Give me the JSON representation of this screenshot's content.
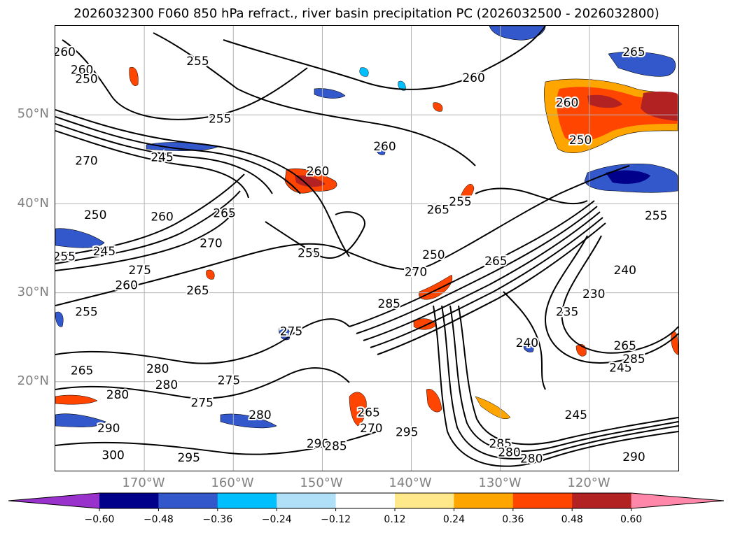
{
  "figure": {
    "title": "2026032300 F060 850 hPa refract., river basin precipitation PC (2026032500 - 2026032800)"
  },
  "axes": {
    "lat_labels": [
      "50°N",
      "40°N",
      "30°N",
      "20°N"
    ],
    "lon_labels": [
      "170°W",
      "160°W",
      "150°W",
      "140°W",
      "130°W",
      "120°W"
    ],
    "lat_range": [
      10,
      60
    ],
    "lon_range": [
      -180,
      -110
    ]
  },
  "contour_labels": [
    {
      "text": "260",
      "lon": -179,
      "lat": 57
    },
    {
      "text": "260",
      "lon": -177,
      "lat": 55
    },
    {
      "text": "250",
      "lon": -176.5,
      "lat": 54
    },
    {
      "text": "255",
      "lon": -164,
      "lat": 56
    },
    {
      "text": "255",
      "lon": -161.5,
      "lat": 49.5
    },
    {
      "text": "245",
      "lon": -168,
      "lat": 45.2
    },
    {
      "text": "270",
      "lon": -176.5,
      "lat": 44.8
    },
    {
      "text": "260",
      "lon": -150.5,
      "lat": 43.6
    },
    {
      "text": "260",
      "lon": -143,
      "lat": 46.4
    },
    {
      "text": "260",
      "lon": -133,
      "lat": 54.1
    },
    {
      "text": "260",
      "lon": -122.5,
      "lat": 51.3
    },
    {
      "text": "265",
      "lon": -115,
      "lat": 57
    },
    {
      "text": "265",
      "lon": -161,
      "lat": 38.9
    },
    {
      "text": "250",
      "lon": -175.5,
      "lat": 38.7
    },
    {
      "text": "260",
      "lon": -168,
      "lat": 38.5
    },
    {
      "text": "270",
      "lon": -162.5,
      "lat": 35.5
    },
    {
      "text": "255",
      "lon": -179,
      "lat": 34
    },
    {
      "text": "245",
      "lon": -174.5,
      "lat": 34.6
    },
    {
      "text": "275",
      "lon": -170.5,
      "lat": 32.5
    },
    {
      "text": "260",
      "lon": -172,
      "lat": 30.8
    },
    {
      "text": "265",
      "lon": -164,
      "lat": 30.2
    },
    {
      "text": "255",
      "lon": -151.5,
      "lat": 34.4
    },
    {
      "text": "265",
      "lon": -137,
      "lat": 39.3
    },
    {
      "text": "255",
      "lon": -134.5,
      "lat": 40.2
    },
    {
      "text": "250",
      "lon": -137.5,
      "lat": 34.2
    },
    {
      "text": "270",
      "lon": -139.5,
      "lat": 32.3
    },
    {
      "text": "285",
      "lon": -142.5,
      "lat": 28.7
    },
    {
      "text": "275",
      "lon": -153.5,
      "lat": 25.6
    },
    {
      "text": "255",
      "lon": -176.5,
      "lat": 27.8
    },
    {
      "text": "265",
      "lon": -177,
      "lat": 21.2
    },
    {
      "text": "280",
      "lon": -168.5,
      "lat": 21.4
    },
    {
      "text": "280",
      "lon": -167.5,
      "lat": 19.6
    },
    {
      "text": "280",
      "lon": -173,
      "lat": 18.5
    },
    {
      "text": "275",
      "lon": -160.5,
      "lat": 20.1
    },
    {
      "text": "275",
      "lon": -163.5,
      "lat": 17.6
    },
    {
      "text": "280",
      "lon": -157,
      "lat": 16.2
    },
    {
      "text": "290",
      "lon": -174,
      "lat": 14.7
    },
    {
      "text": "300",
      "lon": -173.5,
      "lat": 11.7
    },
    {
      "text": "295",
      "lon": -165,
      "lat": 11.4
    },
    {
      "text": "290",
      "lon": -150.5,
      "lat": 13
    },
    {
      "text": "285",
      "lon": -148.5,
      "lat": 12.7
    },
    {
      "text": "295",
      "lon": -140.5,
      "lat": 14.3
    },
    {
      "text": "265",
      "lon": -144.8,
      "lat": 16.5
    },
    {
      "text": "270",
      "lon": -144.5,
      "lat": 14.7
    },
    {
      "text": "240",
      "lon": -127,
      "lat": 24.3
    },
    {
      "text": "235",
      "lon": -122.5,
      "lat": 27.8
    },
    {
      "text": "230",
      "lon": -119.5,
      "lat": 29.8
    },
    {
      "text": "240",
      "lon": -116,
      "lat": 32.5
    },
    {
      "text": "245",
      "lon": -116.5,
      "lat": 21.5
    },
    {
      "text": "245",
      "lon": -121.5,
      "lat": 16.2
    },
    {
      "text": "290",
      "lon": -115,
      "lat": 11.5
    },
    {
      "text": "265",
      "lon": -116,
      "lat": 24
    },
    {
      "text": "285",
      "lon": -115,
      "lat": 22.5
    },
    {
      "text": "285",
      "lon": -130,
      "lat": 13
    },
    {
      "text": "250",
      "lon": -121,
      "lat": 47.1
    },
    {
      "text": "255",
      "lon": -112.5,
      "lat": 38.6
    },
    {
      "text": "265",
      "lon": -130.5,
      "lat": 33.5
    },
    {
      "text": "280",
      "lon": -126.5,
      "lat": 11.3
    },
    {
      "text": "280",
      "lon": -129,
      "lat": 12
    }
  ],
  "colorbar": {
    "ticks": [
      "−0.60",
      "−0.48",
      "−0.36",
      "−0.24",
      "−0.12",
      "0.12",
      "0.24",
      "0.36",
      "0.48",
      "0.60"
    ],
    "levels": [
      -0.6,
      -0.48,
      -0.36,
      -0.24,
      -0.12,
      0.12,
      0.24,
      0.36,
      0.48,
      0.6
    ],
    "colors": [
      "#9932cc",
      "#00008b",
      "#3358cc",
      "#00bfff",
      "#b0e0f8",
      "#ffffff",
      "#ffe889",
      "#ffa500",
      "#ff4500",
      "#b22222",
      "#ff88aa"
    ],
    "extend": "both"
  }
}
